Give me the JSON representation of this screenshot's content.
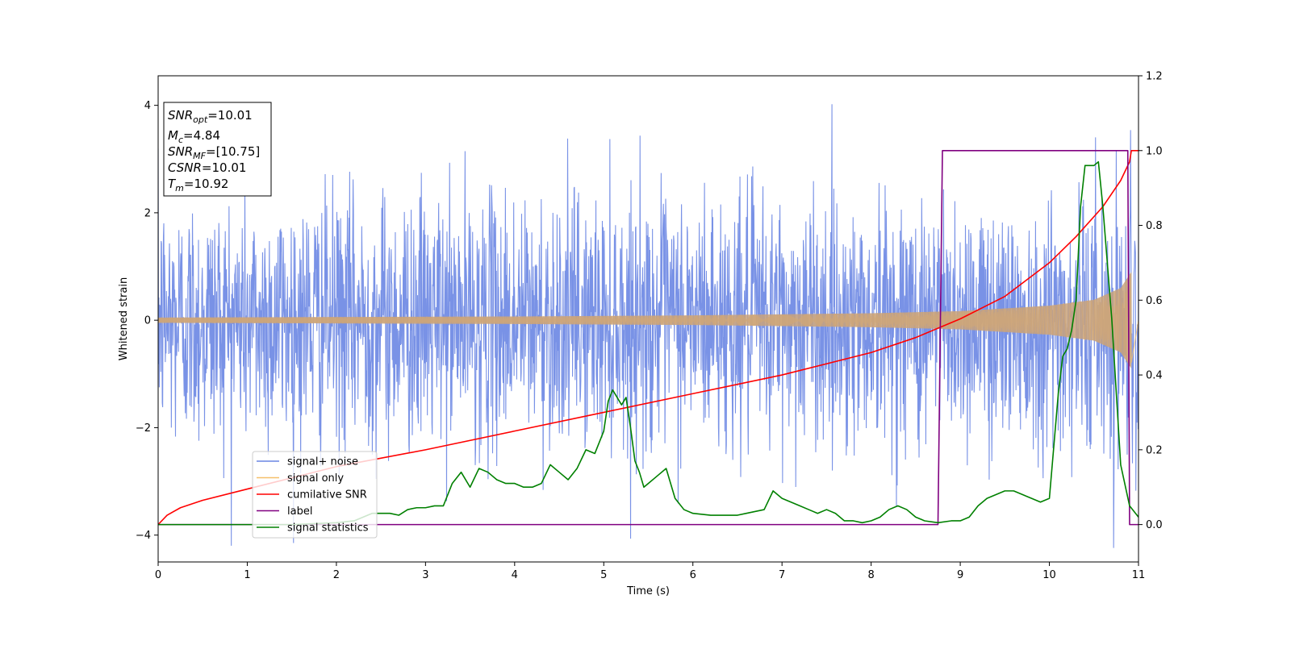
{
  "chart_data": {
    "type": "line",
    "xlabel": "Time (s)",
    "ylabel": "Whitened strain",
    "xlim": [
      0,
      11
    ],
    "ylim": [
      -4.5,
      4.55
    ],
    "y2lim": [
      -0.1,
      1.2
    ],
    "grid": false,
    "x_ticks": [
      "0",
      "1",
      "2",
      "3",
      "4",
      "5",
      "6",
      "7",
      "8",
      "9",
      "10",
      "11"
    ],
    "y_ticks": [
      "−4",
      "−2",
      "0",
      "2",
      "4"
    ],
    "y2_ticks": [
      "0.0",
      "0.2",
      "0.4",
      "0.6",
      "0.8",
      "1.0",
      "1.2"
    ],
    "colors": {
      "signal_noise": "#6a86e3",
      "signal_only": "#f5c06a",
      "cumulative_snr": "#ff0000",
      "label": "#800080",
      "signal_statistics": "#008000"
    },
    "annotation": {
      "lines": [
        {
          "base": "SNR",
          "sub": "opt",
          "value": "=10.01"
        },
        {
          "base": "M",
          "sub": "c",
          "value": "=4.84"
        },
        {
          "base": "SNR",
          "sub": "MF",
          "value": "=[10.75]"
        },
        {
          "base": "CSNR",
          "sub": "",
          "value": "=10.01"
        },
        {
          "base": "T",
          "sub": "m",
          "value": "=10.92"
        }
      ],
      "placement": "top-left"
    },
    "legend": {
      "placement": "lower-left",
      "entries": [
        "signal+ noise",
        "signal only",
        "cumilative SNR",
        "label",
        "signal statistics"
      ]
    },
    "series": [
      {
        "name": "signal+ noise",
        "axis": "left",
        "note": "whitened noise, roughly ±2.5 with spikes to ±4.2"
      },
      {
        "name": "signal only",
        "axis": "left",
        "envelope_x": [
          0,
          2,
          4,
          6,
          8,
          9,
          10,
          10.5,
          10.8,
          10.9,
          10.92
        ],
        "envelope_y": [
          0.05,
          0.06,
          0.07,
          0.09,
          0.13,
          0.17,
          0.27,
          0.38,
          0.6,
          0.85,
          0.9
        ]
      },
      {
        "name": "cumilative SNR",
        "axis": "right",
        "x": [
          0,
          0.1,
          0.25,
          0.5,
          1,
          2,
          3,
          4,
          5,
          6,
          7,
          8,
          8.5,
          9,
          9.5,
          10,
          10.3,
          10.6,
          10.8,
          10.9,
          10.92,
          11
        ],
        "y": [
          0,
          0.025,
          0.045,
          0.065,
          0.095,
          0.155,
          0.2,
          0.25,
          0.3,
          0.35,
          0.4,
          0.46,
          0.5,
          0.55,
          0.61,
          0.7,
          0.77,
          0.85,
          0.92,
          0.97,
          1.0,
          1.0
        ]
      },
      {
        "name": "label",
        "axis": "right",
        "x": [
          0,
          8.75,
          8.8,
          10.88,
          10.9,
          11
        ],
        "y": [
          0,
          0,
          1,
          1,
          0,
          0
        ]
      },
      {
        "name": "signal statistics",
        "axis": "right",
        "x": [
          0,
          0.5,
          1,
          1.5,
          2,
          2.2,
          2.3,
          2.4,
          2.5,
          2.6,
          2.7,
          2.8,
          2.9,
          3,
          3.1,
          3.2,
          3.3,
          3.4,
          3.5,
          3.6,
          3.7,
          3.8,
          3.9,
          4,
          4.1,
          4.2,
          4.3,
          4.4,
          4.5,
          4.6,
          4.7,
          4.8,
          4.9,
          5,
          5.05,
          5.1,
          5.15,
          5.2,
          5.25,
          5.3,
          5.35,
          5.4,
          5.45,
          5.5,
          5.6,
          5.7,
          5.8,
          5.9,
          6,
          6.2,
          6.4,
          6.5,
          6.6,
          6.8,
          6.9,
          7,
          7.1,
          7.2,
          7.3,
          7.4,
          7.5,
          7.6,
          7.7,
          7.8,
          7.9,
          8,
          8.1,
          8.2,
          8.3,
          8.4,
          8.5,
          8.6,
          8.75,
          8.9,
          9,
          9.1,
          9.2,
          9.3,
          9.4,
          9.5,
          9.6,
          9.7,
          9.8,
          9.9,
          10,
          10.1,
          10.15,
          10.2,
          10.25,
          10.3,
          10.35,
          10.4,
          10.45,
          10.5,
          10.55,
          10.6,
          10.7,
          10.8,
          10.9,
          11
        ],
        "y": [
          0,
          0,
          0,
          0.0,
          0.005,
          0.01,
          0.02,
          0.03,
          0.03,
          0.03,
          0.025,
          0.04,
          0.045,
          0.045,
          0.05,
          0.05,
          0.11,
          0.14,
          0.1,
          0.15,
          0.14,
          0.12,
          0.11,
          0.11,
          0.1,
          0.1,
          0.11,
          0.16,
          0.14,
          0.12,
          0.15,
          0.2,
          0.19,
          0.25,
          0.33,
          0.36,
          0.34,
          0.32,
          0.34,
          0.26,
          0.17,
          0.14,
          0.1,
          0.11,
          0.13,
          0.15,
          0.07,
          0.04,
          0.03,
          0.025,
          0.025,
          0.025,
          0.03,
          0.04,
          0.09,
          0.07,
          0.06,
          0.05,
          0.04,
          0.03,
          0.04,
          0.03,
          0.01,
          0.01,
          0.005,
          0.01,
          0.02,
          0.04,
          0.05,
          0.04,
          0.02,
          0.01,
          0.005,
          0.01,
          0.01,
          0.02,
          0.05,
          0.07,
          0.08,
          0.09,
          0.09,
          0.08,
          0.07,
          0.06,
          0.07,
          0.35,
          0.45,
          0.47,
          0.52,
          0.6,
          0.85,
          0.96,
          0.96,
          0.96,
          0.97,
          0.85,
          0.55,
          0.16,
          0.05,
          0.02
        ]
      }
    ]
  }
}
